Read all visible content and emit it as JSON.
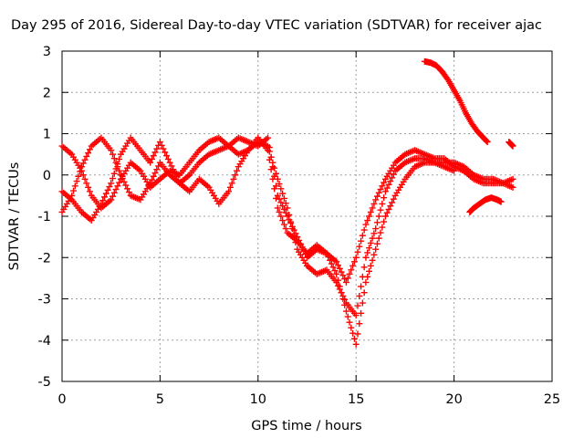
{
  "chart_data": {
    "type": "scatter",
    "title": "Day 295 of 2016, Sidereal Day-to-day VTEC variation (SDTVAR) for receiver ajac",
    "xlabel": "GPS time / hours",
    "ylabel": "SDTVAR / TECUs",
    "xlim": [
      0,
      25
    ],
    "ylim": [
      -5,
      3
    ],
    "xticks": [
      "0",
      "5",
      "10",
      "15",
      "20",
      "25"
    ],
    "yticks": [
      "-5",
      "-4",
      "-3",
      "-2",
      "-1",
      "0",
      "1",
      "2",
      "3"
    ],
    "grid": true,
    "marker": "+",
    "color": "#ff0000",
    "series": [
      {
        "x": [
          0.0,
          0.5,
          1.0,
          1.5,
          2.0,
          2.5,
          3.0,
          3.5,
          4.0,
          4.5,
          5.0,
          5.5,
          6.0,
          6.5,
          7.0,
          7.5,
          8.0,
          8.5,
          9.0,
          9.5,
          10.0,
          10.5,
          11.0,
          11.5,
          12.0,
          12.5,
          13.0,
          13.5,
          14.0,
          14.5,
          15.0,
          15.5,
          16.0,
          16.5,
          17.0,
          17.5,
          18.0,
          18.5,
          19.0,
          19.5,
          20.0,
          20.5,
          21.0,
          21.5,
          22.0,
          22.5,
          23.0
        ],
        "y": [
          0.7,
          0.5,
          0.1,
          -0.5,
          -0.8,
          -0.6,
          -0.1,
          0.3,
          0.1,
          -0.3,
          -0.1,
          0.1,
          0.0,
          0.3,
          0.6,
          0.8,
          0.9,
          0.7,
          0.9,
          0.8,
          0.7,
          0.9,
          -0.5,
          -1.0,
          -1.5,
          -2.0,
          -1.8,
          -1.9,
          -2.1,
          -2.6,
          -2.0,
          -1.2,
          -0.6,
          -0.1,
          0.3,
          0.5,
          0.6,
          0.5,
          0.4,
          0.4,
          0.2,
          0.1,
          -0.1,
          -0.2,
          -0.2,
          -0.2,
          -0.3
        ]
      },
      {
        "x": [
          0.0,
          0.5,
          1.0,
          1.5,
          2.0,
          2.5,
          3.0,
          3.5,
          4.0,
          4.5,
          5.0,
          5.5,
          6.0,
          6.5,
          7.0,
          7.5,
          8.0,
          8.5,
          9.0,
          9.5,
          10.0,
          10.5,
          11.0,
          11.5,
          12.0,
          12.5,
          13.0,
          13.5,
          14.0,
          14.5,
          15.0,
          15.5,
          16.0,
          16.5,
          17.0,
          17.5,
          18.0,
          18.5,
          19.0,
          19.5,
          20.0,
          20.5,
          21.0,
          21.5,
          22.0,
          22.5,
          23.0
        ],
        "y": [
          -0.9,
          -0.5,
          0.2,
          0.7,
          0.9,
          0.6,
          0.0,
          -0.5,
          -0.6,
          -0.2,
          0.3,
          0.0,
          -0.2,
          0.0,
          0.3,
          0.5,
          0.6,
          0.7,
          0.5,
          0.6,
          0.8,
          0.7,
          -0.1,
          -0.8,
          -1.8,
          -2.2,
          -2.4,
          -2.3,
          -2.6,
          -3.1,
          -3.4,
          -2.0,
          -1.3,
          -0.4,
          0.1,
          0.3,
          0.4,
          0.4,
          0.3,
          0.3,
          0.3,
          0.2,
          0.0,
          -0.1,
          -0.1,
          -0.2,
          -0.1
        ]
      },
      {
        "x": [
          0.0,
          0.5,
          1.0,
          1.5,
          2.0,
          2.5,
          3.0,
          3.5,
          4.0,
          4.5,
          5.0,
          5.5,
          6.0,
          6.5,
          7.0,
          7.5,
          8.0,
          8.5,
          9.0,
          9.5,
          10.0,
          10.5,
          11.0,
          11.5,
          12.0,
          12.5,
          13.0,
          13.5,
          14.0,
          14.5,
          15.0,
          15.5,
          16.0,
          16.5,
          17.0,
          17.5,
          18.0,
          18.5,
          19.0,
          19.5,
          20.0
        ],
        "y": [
          -0.4,
          -0.6,
          -0.9,
          -1.1,
          -0.7,
          -0.2,
          0.5,
          0.9,
          0.6,
          0.3,
          0.8,
          0.3,
          -0.2,
          -0.4,
          -0.1,
          -0.3,
          -0.7,
          -0.4,
          0.2,
          0.6,
          0.9,
          0.6,
          -0.8,
          -1.4,
          -1.6,
          -1.9,
          -1.7,
          -1.9,
          -2.4,
          -3.3,
          -4.1,
          -2.6,
          -1.8,
          -1.0,
          -0.5,
          -0.1,
          0.2,
          0.3,
          0.3,
          0.2,
          0.1
        ]
      },
      {
        "x": [
          18.5,
          18.8,
          19.1,
          19.4,
          19.7,
          20.0,
          20.3,
          20.6,
          20.9,
          21.2,
          21.5,
          21.7
        ],
        "y": [
          2.75,
          2.72,
          2.65,
          2.5,
          2.3,
          2.05,
          1.8,
          1.5,
          1.25,
          1.05,
          0.9,
          0.8
        ]
      },
      {
        "x": [
          20.8,
          21.0,
          21.3,
          21.6,
          21.9,
          22.2,
          22.4
        ],
        "y": [
          -0.9,
          -0.8,
          -0.7,
          -0.6,
          -0.55,
          -0.6,
          -0.65
        ]
      },
      {
        "x": [
          22.8,
          22.9,
          23.0
        ],
        "y": [
          0.8,
          0.75,
          0.7
        ]
      }
    ]
  }
}
